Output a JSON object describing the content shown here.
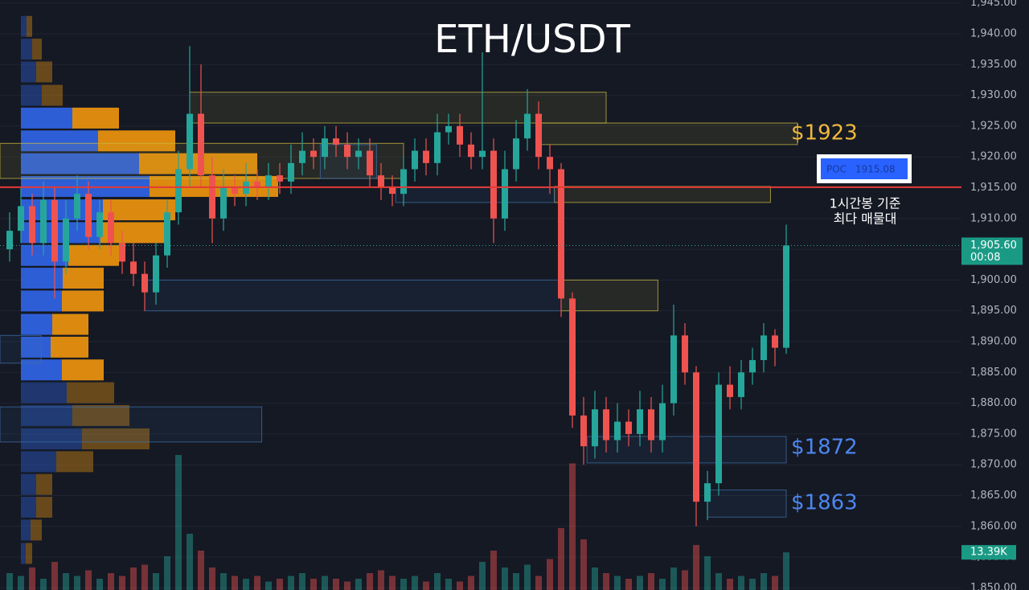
{
  "chart_data": {
    "type": "candlestick",
    "title": "ETH/USDT",
    "ylim": [
      1849.66,
      1945.48
    ],
    "yticks": [
      {
        "value": 1945,
        "label": "1,945.00"
      },
      {
        "value": 1940,
        "label": "1,940.00"
      },
      {
        "value": 1935,
        "label": "1,935.00"
      },
      {
        "value": 1930,
        "label": "1,930.00"
      },
      {
        "value": 1925,
        "label": "1,925.00"
      },
      {
        "value": 1920,
        "label": "1,920.00"
      },
      {
        "value": 1915,
        "label": "1,915.00"
      },
      {
        "value": 1910,
        "label": "1,910.00"
      },
      {
        "value": 1905,
        "label": "1,905.00"
      },
      {
        "value": 1900,
        "label": "1,900.00"
      },
      {
        "value": 1895,
        "label": "1,895.00"
      },
      {
        "value": 1890,
        "label": "1,890.00"
      },
      {
        "value": 1885,
        "label": "1,885.00"
      },
      {
        "value": 1880,
        "label": "1,880.00"
      },
      {
        "value": 1875,
        "label": "1,875.00"
      },
      {
        "value": 1870,
        "label": "1,870.00"
      },
      {
        "value": 1865,
        "label": "1,865.00"
      },
      {
        "value": 1860,
        "label": "1,860.00"
      },
      {
        "value": 1855,
        "label": "1,855.00"
      },
      {
        "value": 1850,
        "label": "1,850.00"
      }
    ],
    "grid": true,
    "up_color": "#26a69a",
    "down_color": "#ef5350",
    "open": [
      1905,
      1908,
      1912,
      1906,
      1913,
      1903,
      1910,
      1914,
      1907,
      1911,
      1906,
      1903,
      1901,
      1898,
      1904,
      1911,
      1918,
      1927,
      1917,
      1910,
      1915,
      1914,
      1916,
      1915,
      1917,
      1916,
      1919,
      1921,
      1920,
      1923,
      1922,
      1920,
      1921,
      1917,
      1915,
      1914,
      1918,
      1921,
      1919,
      1924,
      1925,
      1922,
      1920,
      1921,
      1910,
      1918,
      1923,
      1927,
      1920,
      1918,
      1897,
      1878,
      1873,
      1879,
      1874,
      1877,
      1875,
      1879,
      1874,
      1880,
      1891,
      1885,
      1864,
      1867,
      1883,
      1881,
      1885,
      1887,
      1891,
      1889
    ],
    "high": [
      1911,
      1915,
      1914,
      1916,
      1915,
      1913,
      1917,
      1916,
      1913,
      1913,
      1908,
      1906,
      1903,
      1906,
      1913,
      1921,
      1938,
      1935,
      1920,
      1918,
      1917,
      1919,
      1918,
      1919,
      1919,
      1922,
      1924,
      1923,
      1925,
      1925,
      1924,
      1923,
      1923,
      1919,
      1917,
      1920,
      1923,
      1923,
      1927,
      1927,
      1927,
      1924,
      1937,
      1923,
      1921,
      1926,
      1931,
      1929,
      1922,
      1919,
      1898,
      1881,
      1882,
      1881,
      1880,
      1879,
      1882,
      1881,
      1883,
      1896,
      1893,
      1886,
      1869,
      1885,
      1886,
      1887,
      1889,
      1893,
      1892,
      1909
    ],
    "low": [
      1903,
      1906,
      1904,
      1904,
      1897,
      1901,
      1908,
      1905,
      1905,
      1904,
      1901,
      1899,
      1895,
      1896,
      1902,
      1909,
      1915,
      1915,
      1906,
      1908,
      1912,
      1912,
      1913,
      1913,
      1914,
      1914,
      1917,
      1918,
      1918,
      1920,
      1918,
      1918,
      1915,
      1913,
      1912,
      1912,
      1916,
      1917,
      1917,
      1922,
      1920,
      1918,
      1918,
      1906,
      1908,
      1916,
      1921,
      1918,
      1914,
      1894,
      1876,
      1870,
      1871,
      1872,
      1872,
      1873,
      1873,
      1872,
      1872,
      1878,
      1883,
      1860,
      1861,
      1865,
      1879,
      1879,
      1883,
      1885,
      1886,
      1888
    ],
    "close": [
      1908,
      1912,
      1906,
      1913,
      1903,
      1910,
      1914,
      1907,
      1911,
      1906,
      1903,
      1901,
      1898,
      1904,
      1911,
      1918,
      1927,
      1917,
      1910,
      1915,
      1914,
      1916,
      1915,
      1917,
      1916,
      1919,
      1921,
      1920,
      1923,
      1922,
      1920,
      1921,
      1917,
      1915,
      1914,
      1918,
      1921,
      1919,
      1924,
      1925,
      1922,
      1920,
      1921,
      1910,
      1918,
      1923,
      1927,
      1920,
      1918,
      1897,
      1878,
      1873,
      1879,
      1874,
      1877,
      1875,
      1879,
      1874,
      1880,
      1891,
      1885,
      1864,
      1867,
      1883,
      1881,
      1885,
      1887,
      1891,
      1889,
      1905.6
    ],
    "last_price_label": "1,905.60",
    "countdown": "00:08",
    "volume": {
      "values": [
        6,
        5,
        8,
        4,
        10,
        6,
        5,
        7,
        4,
        6,
        5,
        8,
        9,
        6,
        12,
        48,
        20,
        14,
        8,
        6,
        5,
        4,
        5,
        3,
        4,
        5,
        6,
        4,
        5,
        4,
        3,
        4,
        6,
        7,
        5,
        4,
        5,
        3,
        6,
        4,
        3,
        5,
        10,
        14,
        8,
        6,
        9,
        5,
        11,
        22,
        45,
        18,
        8,
        6,
        5,
        4,
        5,
        6,
        4,
        8,
        7,
        16,
        12,
        6,
        4,
        5,
        4,
        6,
        5,
        13.39
      ],
      "last_label": "13.39K"
    },
    "volume_profile": {
      "levels": [
        1941.2,
        1937.5,
        1933.8,
        1930.0,
        1926.3,
        1922.6,
        1918.9,
        1915.2,
        1911.4,
        1907.7,
        1904.0,
        1900.3,
        1896.6,
        1892.8,
        1889.1,
        1885.4,
        1881.7,
        1878.0,
        1874.2,
        1870.5,
        1866.8,
        1863.1,
        1859.4,
        1855.6
      ],
      "up": [
        7,
        14,
        19,
        26,
        64,
        96,
        147,
        160,
        102,
        99,
        59,
        52,
        51,
        39,
        37,
        51,
        57,
        64,
        76,
        44,
        19,
        19,
        12,
        6
      ],
      "down": [
        7,
        12,
        20,
        26,
        58,
        96,
        147,
        160,
        90,
        87,
        63,
        51,
        52,
        45,
        47,
        52,
        59,
        71,
        84,
        46,
        20,
        20,
        14,
        8
      ],
      "up_color": "#2f62e0",
      "down_color": "#e6900f",
      "value_area": [
        1884,
        1927
      ]
    },
    "zones": [
      {
        "from": 16,
        "to": 53,
        "top": 1930.5,
        "bottom": 1925.5,
        "color": "#c9b93f"
      },
      {
        "from": 47,
        "to": 70,
        "top": 1925.5,
        "bottom": 1922,
        "color": "#c9b93f"
      },
      {
        "from": -1,
        "to": 35,
        "top": 1922.2,
        "bottom": 1916.5,
        "color": "#c9b93f"
      },
      {
        "from": 27.6,
        "to": 32.6,
        "top": 1922,
        "bottom": 1916.5,
        "color": "#3d6fa8"
      },
      {
        "from": 48.4,
        "to": 67.6,
        "top": 1915.2,
        "bottom": 1912.6,
        "color": "#c9b93f"
      },
      {
        "from": 34.3,
        "to": 48.4,
        "top": 1915,
        "bottom": 1912.6,
        "color": "#3d6fa8"
      },
      {
        "from": 12,
        "to": 49,
        "top": 1900,
        "bottom": 1895,
        "color": "#3d6fa8"
      },
      {
        "from": 49,
        "to": 57.6,
        "top": 1900,
        "bottom": 1895,
        "color": "#c9b93f"
      },
      {
        "from": 51.3,
        "to": 69,
        "top": 1874.6,
        "bottom": 1870.3,
        "color": "#3d6fa8"
      },
      {
        "from": 62,
        "to": 69,
        "top": 1865.9,
        "bottom": 1861.5,
        "color": "#3d6fa8"
      },
      {
        "from": -1,
        "to": 22.4,
        "top": 1879.4,
        "bottom": 1873.7,
        "color": "#3d6fa8"
      },
      {
        "from": -1,
        "to": 2.8,
        "top": 1891,
        "bottom": 1886.5,
        "color": "#3d6fa8"
      }
    ],
    "annotations": [
      {
        "text": "$1923",
        "price": 1923,
        "color": "#f0b93a"
      },
      {
        "text": "$1872",
        "price": 1872,
        "color": "#4d86f0"
      },
      {
        "text": "$1863",
        "price": 1863,
        "color": "#4d86f0"
      }
    ],
    "poc": {
      "label": "POC",
      "value": 1915.08,
      "color": "#e53935"
    },
    "poc_note": [
      "1시간봉 기준",
      "최다 매물대"
    ]
  }
}
